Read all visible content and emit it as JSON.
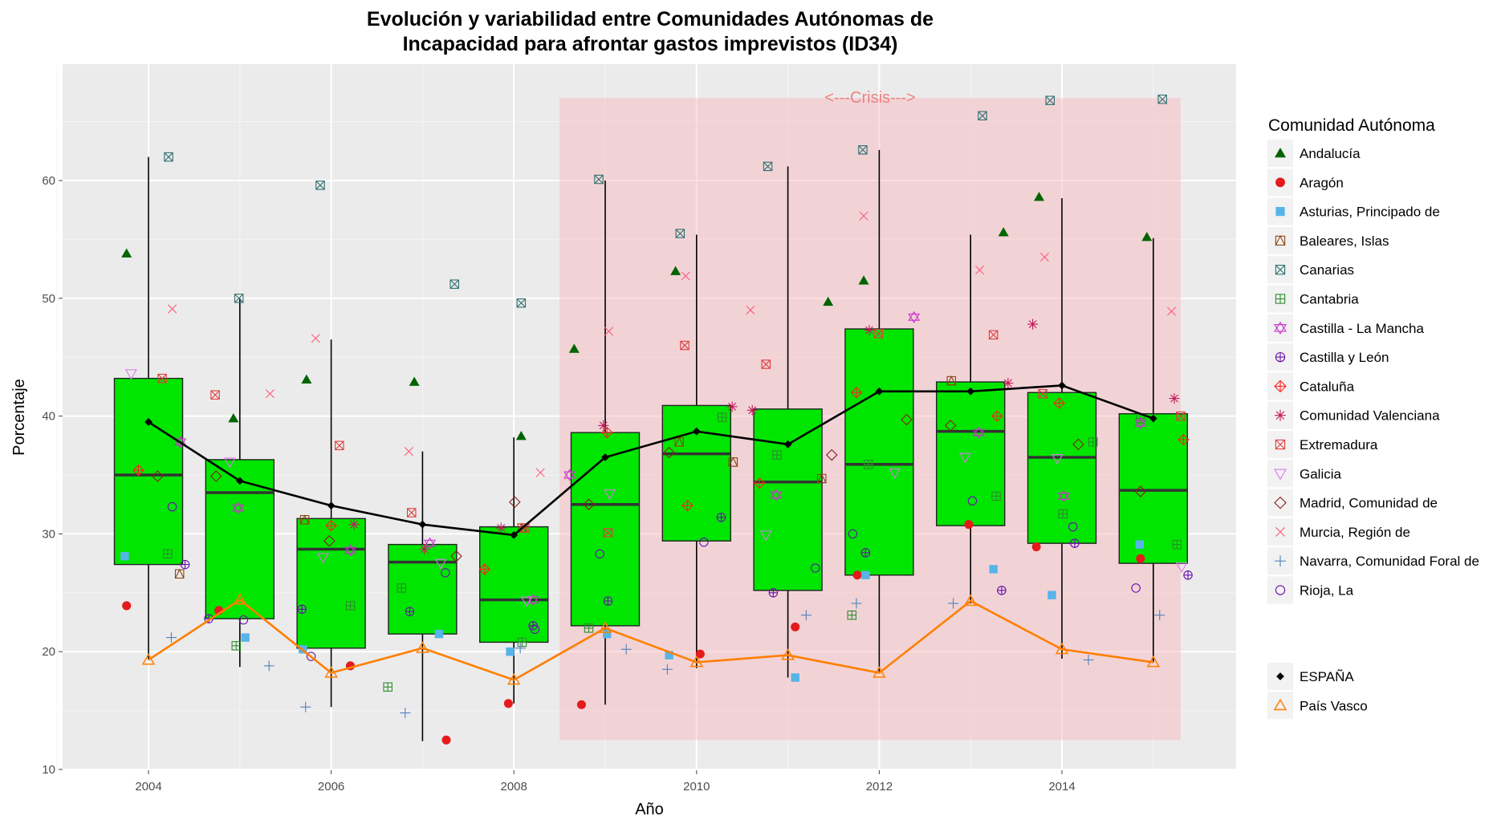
{
  "chart_data": {
    "type": "boxplot",
    "title": "Evolución y variabilidad entre Comunidades Autónomas de\nIncapacidad para afrontar gastos imprevistos (ID34)",
    "title_lines": [
      "Evolución y variabilidad entre Comunidades Autónomas de",
      "Incapacidad para afrontar gastos imprevistos (ID34)"
    ],
    "xlabel": "Año",
    "ylabel": "Porcentaje",
    "xlim": [
      2003.0,
      2016.0
    ],
    "ylim": [
      10,
      70
    ],
    "x_ticks": [
      2004,
      2006,
      2008,
      2010,
      2012,
      2014
    ],
    "y_ticks": [
      10,
      20,
      30,
      40,
      50,
      60
    ],
    "grid": true,
    "background_color": "#ebebeb",
    "box_fill": "#00e600",
    "crisis": {
      "label": "<---Crisis--->",
      "x_start": 2008.5,
      "x_end": 2015.3,
      "y_start": 12.5,
      "y_end": 67.0,
      "color": "#f8b6bc"
    },
    "legend": {
      "title": "Comunidad Autónoma",
      "position": "right",
      "items": [
        {
          "name": "Andalucía",
          "shape": "triangle-filled",
          "color": "#006400"
        },
        {
          "name": "Aragón",
          "shape": "circle-filled",
          "color": "#e41a1c"
        },
        {
          "name": "Asturias, Principado de",
          "shape": "square-filled",
          "color": "#56b4e9"
        },
        {
          "name": "Baleares, Islas",
          "shape": "square-triangle",
          "color": "#8b4513"
        },
        {
          "name": "Canarias",
          "shape": "square-x",
          "color": "#2f6f6f"
        },
        {
          "name": "Cantabria",
          "shape": "square-plus",
          "color": "#2e8b2e"
        },
        {
          "name": "Castilla - La Mancha",
          "shape": "star-of-david",
          "color": "#cc33cc"
        },
        {
          "name": "Castilla y León",
          "shape": "circle-plus",
          "color": "#6a0dad"
        },
        {
          "name": "Cataluña",
          "shape": "diamond-plus",
          "color": "#ff2020"
        },
        {
          "name": "Comunidad Valenciana",
          "shape": "asterisk",
          "color": "#c2185b"
        },
        {
          "name": "Extremadura",
          "shape": "square-x",
          "color": "#e03c3c"
        },
        {
          "name": "Galicia",
          "shape": "triangle-down",
          "color": "#dd77ee"
        },
        {
          "name": "Madrid, Comunidad de",
          "shape": "diamond",
          "color": "#8b1a1a"
        },
        {
          "name": "Murcia, Región de",
          "shape": "cross-x",
          "color": "#ff5a7a"
        },
        {
          "name": "Navarra, Comunidad Foral de",
          "shape": "plus",
          "color": "#4f81bd"
        },
        {
          "name": "Rioja, La",
          "shape": "circle",
          "color": "#6a0dad"
        }
      ],
      "lines": [
        {
          "name": "ESPAÑA",
          "shape": "diamond-filled",
          "color": "#000000"
        },
        {
          "name": "País Vasco",
          "shape": "triangle",
          "color": "#ff7f00"
        }
      ]
    },
    "boxes": [
      {
        "x": 2004,
        "q1": 27.4,
        "median": 35.0,
        "q3": 43.2,
        "whisker_low": 19.3,
        "whisker_high": 62.0
      },
      {
        "x": 2005,
        "q1": 22.8,
        "median": 33.5,
        "q3": 36.3,
        "whisker_low": 18.7,
        "whisker_high": 50.0
      },
      {
        "x": 2006,
        "q1": 20.3,
        "median": 28.7,
        "q3": 31.3,
        "whisker_low": 15.3,
        "whisker_high": 46.5
      },
      {
        "x": 2007,
        "q1": 21.5,
        "median": 27.6,
        "q3": 29.1,
        "whisker_low": 12.4,
        "whisker_high": 37.0
      },
      {
        "x": 2008,
        "q1": 20.8,
        "median": 24.4,
        "q3": 30.6,
        "whisker_low": 15.6,
        "whisker_high": 38.2
      },
      {
        "x": 2009,
        "q1": 22.2,
        "median": 32.5,
        "q3": 38.6,
        "whisker_low": 15.5,
        "whisker_high": 60.0
      },
      {
        "x": 2010,
        "q1": 29.4,
        "median": 36.8,
        "q3": 40.9,
        "whisker_low": 18.6,
        "whisker_high": 55.4
      },
      {
        "x": 2011,
        "q1": 25.2,
        "median": 34.4,
        "q3": 40.6,
        "whisker_low": 17.8,
        "whisker_high": 61.2
      },
      {
        "x": 2012,
        "q1": 26.5,
        "median": 35.9,
        "q3": 47.4,
        "whisker_low": 18.2,
        "whisker_high": 62.6
      },
      {
        "x": 2013,
        "q1": 30.7,
        "median": 38.7,
        "q3": 42.9,
        "whisker_low": 24.1,
        "whisker_high": 55.4
      },
      {
        "x": 2014,
        "q1": 29.2,
        "median": 36.5,
        "q3": 42.0,
        "whisker_low": 19.4,
        "whisker_high": 58.5
      },
      {
        "x": 2015,
        "q1": 27.5,
        "median": 33.7,
        "q3": 40.2,
        "whisker_low": 19.1,
        "whisker_high": 55.1
      }
    ],
    "series": [
      {
        "name": "ESPAÑA",
        "x": [
          2004,
          2005,
          2006,
          2007,
          2008,
          2009,
          2010,
          2011,
          2012,
          2013,
          2014,
          2015
        ],
        "values": [
          39.5,
          34.5,
          32.4,
          30.8,
          29.9,
          36.5,
          38.7,
          37.6,
          42.1,
          42.1,
          42.6,
          39.8
        ]
      },
      {
        "name": "País Vasco",
        "x": [
          2004,
          2005,
          2006,
          2007,
          2008,
          2009,
          2010,
          2011,
          2012,
          2013,
          2014,
          2015
        ],
        "values": [
          19.3,
          24.4,
          18.2,
          20.3,
          17.6,
          22.0,
          19.1,
          19.7,
          18.2,
          24.3,
          20.2,
          19.1
        ]
      }
    ],
    "points": {
      "Andalucía": [
        [
          2003.76,
          53.8
        ],
        [
          2004.93,
          39.8
        ],
        [
          2005.73,
          43.1
        ],
        [
          2006.91,
          42.9
        ],
        [
          2008.08,
          38.3
        ],
        [
          2008.66,
          45.7
        ],
        [
          2009.77,
          52.3
        ],
        [
          2011.44,
          49.7
        ],
        [
          2011.83,
          51.5
        ],
        [
          2013.36,
          55.6
        ],
        [
          2013.75,
          58.6
        ],
        [
          2014.93,
          55.2
        ]
      ],
      "Aragón": [
        [
          2003.76,
          23.9
        ],
        [
          2004.77,
          23.5
        ],
        [
          2006.21,
          18.8
        ],
        [
          2007.26,
          12.5
        ],
        [
          2007.94,
          15.6
        ],
        [
          2008.74,
          15.5
        ],
        [
          2010.04,
          19.8
        ],
        [
          2011.08,
          22.1
        ],
        [
          2011.76,
          26.5
        ],
        [
          2012.98,
          30.8
        ],
        [
          2013.72,
          28.9
        ],
        [
          2014.86,
          27.9
        ]
      ],
      "Asturias, Principado de": [
        [
          2003.74,
          28.1
        ],
        [
          2005.06,
          21.2
        ],
        [
          2005.69,
          20.2
        ],
        [
          2007.18,
          21.5
        ],
        [
          2007.96,
          20.0
        ],
        [
          2009.02,
          21.5
        ],
        [
          2009.7,
          19.7
        ],
        [
          2011.08,
          17.8
        ],
        [
          2011.85,
          26.5
        ],
        [
          2013.25,
          27.0
        ],
        [
          2013.89,
          24.8
        ],
        [
          2014.85,
          29.1
        ]
      ],
      "Baleares, Islas": [
        [
          2004.34,
          26.6
        ],
        [
          2005.71,
          31.2
        ],
        [
          2008.09,
          30.5
        ],
        [
          2009.81,
          37.8
        ],
        [
          2010.4,
          36.1
        ],
        [
          2011.37,
          34.7
        ],
        [
          2012.79,
          43.0
        ]
      ],
      "Canarias": [
        [
          2004.22,
          62.0
        ],
        [
          2004.99,
          50.0
        ],
        [
          2005.88,
          59.6
        ],
        [
          2007.35,
          51.2
        ],
        [
          2008.08,
          49.6
        ],
        [
          2008.93,
          60.1
        ],
        [
          2009.82,
          55.5
        ],
        [
          2010.78,
          61.2
        ],
        [
          2011.82,
          62.6
        ],
        [
          2013.13,
          65.5
        ],
        [
          2013.87,
          66.8
        ],
        [
          2015.1,
          66.9
        ]
      ],
      "Cantabria": [
        [
          2004.21,
          28.3
        ],
        [
          2004.96,
          20.5
        ],
        [
          2006.21,
          23.9
        ],
        [
          2006.62,
          17.0
        ],
        [
          2006.77,
          25.4
        ],
        [
          2008.09,
          20.8
        ],
        [
          2008.82,
          22.0
        ],
        [
          2010.28,
          39.9
        ],
        [
          2010.88,
          36.7
        ],
        [
          2011.7,
          23.1
        ],
        [
          2011.88,
          35.9
        ],
        [
          2013.28,
          33.2
        ],
        [
          2014.01,
          31.7
        ],
        [
          2014.34,
          37.8
        ],
        [
          2014.86,
          39.8
        ],
        [
          2015.26,
          29.1
        ]
      ],
      "Castilla - La Mancha": [
        [
          2004.35,
          37.8
        ],
        [
          2004.98,
          32.2
        ],
        [
          2006.21,
          28.6
        ],
        [
          2007.08,
          29.2
        ],
        [
          2008.21,
          24.4
        ],
        [
          2008.61,
          35.0
        ],
        [
          2010.87,
          33.3
        ],
        [
          2012.38,
          48.4
        ],
        [
          2013.09,
          38.6
        ],
        [
          2014.02,
          33.2
        ],
        [
          2014.86,
          39.4
        ]
      ],
      "Castilla y León": [
        [
          2004.4,
          27.4
        ],
        [
          2004.66,
          22.8
        ],
        [
          2005.68,
          23.6
        ],
        [
          2006.86,
          23.4
        ],
        [
          2008.21,
          22.2
        ],
        [
          2009.03,
          24.3
        ],
        [
          2010.27,
          31.4
        ],
        [
          2010.84,
          25.0
        ],
        [
          2011.85,
          28.4
        ],
        [
          2013.34,
          25.2
        ],
        [
          2014.14,
          29.2
        ],
        [
          2015.38,
          26.5
        ]
      ],
      "Cataluña": [
        [
          2003.89,
          35.4
        ],
        [
          2006.0,
          30.7
        ],
        [
          2007.68,
          27.0
        ],
        [
          2009.02,
          38.6
        ],
        [
          2009.9,
          32.4
        ],
        [
          2010.69,
          34.3
        ],
        [
          2011.75,
          42.0
        ],
        [
          2013.29,
          40.0
        ],
        [
          2013.97,
          41.1
        ],
        [
          2015.33,
          38.0
        ]
      ],
      "Comunidad Valenciana": [
        [
          2006.25,
          30.8
        ],
        [
          2007.02,
          28.7
        ],
        [
          2007.86,
          30.5
        ],
        [
          2008.98,
          39.2
        ],
        [
          2010.39,
          40.8
        ],
        [
          2010.61,
          40.5
        ],
        [
          2011.89,
          47.3
        ],
        [
          2013.41,
          42.8
        ],
        [
          2013.68,
          47.8
        ],
        [
          2015.23,
          41.5
        ]
      ],
      "Extremadura": [
        [
          2004.15,
          43.2
        ],
        [
          2004.73,
          41.8
        ],
        [
          2006.09,
          37.5
        ],
        [
          2006.88,
          31.8
        ],
        [
          2008.12,
          30.5
        ],
        [
          2009.03,
          30.1
        ],
        [
          2009.87,
          46.0
        ],
        [
          2010.76,
          44.4
        ],
        [
          2011.99,
          47.0
        ],
        [
          2013.25,
          46.9
        ],
        [
          2013.79,
          41.9
        ],
        [
          2015.3,
          40.0
        ]
      ],
      "Galicia": [
        [
          2003.81,
          43.6
        ],
        [
          2004.89,
          36.1
        ],
        [
          2005.91,
          28.0
        ],
        [
          2007.2,
          27.5
        ],
        [
          2008.14,
          24.3
        ],
        [
          2009.05,
          33.4
        ],
        [
          2010.76,
          29.9
        ],
        [
          2012.17,
          35.2
        ],
        [
          2012.94,
          36.5
        ],
        [
          2013.95,
          36.4
        ],
        [
          2015.31,
          27.2
        ]
      ],
      "Madrid, Comunidad de": [
        [
          2004.1,
          34.9
        ],
        [
          2004.74,
          34.9
        ],
        [
          2005.98,
          29.4
        ],
        [
          2007.37,
          28.1
        ],
        [
          2008.01,
          32.7
        ],
        [
          2008.82,
          32.5
        ],
        [
          2009.7,
          36.9
        ],
        [
          2011.48,
          36.7
        ],
        [
          2012.3,
          39.7
        ],
        [
          2012.78,
          39.2
        ],
        [
          2014.18,
          37.6
        ],
        [
          2014.86,
          33.6
        ]
      ],
      "Murcia, Región de": [
        [
          2004.26,
          49.1
        ],
        [
          2005.33,
          41.9
        ],
        [
          2005.83,
          46.6
        ],
        [
          2006.85,
          37.0
        ],
        [
          2008.29,
          35.2
        ],
        [
          2009.04,
          47.2
        ],
        [
          2009.88,
          51.9
        ],
        [
          2010.59,
          49.0
        ],
        [
          2011.83,
          57.0
        ],
        [
          2013.1,
          52.4
        ],
        [
          2013.81,
          53.5
        ],
        [
          2015.2,
          48.9
        ]
      ],
      "Navarra, Comunidad Foral de": [
        [
          2004.25,
          21.2
        ],
        [
          2005.32,
          18.8
        ],
        [
          2005.72,
          15.3
        ],
        [
          2006.81,
          14.8
        ],
        [
          2008.07,
          20.3
        ],
        [
          2009.23,
          20.2
        ],
        [
          2009.68,
          18.5
        ],
        [
          2011.2,
          23.1
        ],
        [
          2011.75,
          24.1
        ],
        [
          2012.81,
          24.1
        ],
        [
          2014.29,
          19.3
        ],
        [
          2015.07,
          23.1
        ]
      ],
      "Rioja, La": [
        [
          2004.26,
          32.3
        ],
        [
          2005.04,
          22.7
        ],
        [
          2005.78,
          19.6
        ],
        [
          2007.25,
          26.7
        ],
        [
          2008.23,
          21.9
        ],
        [
          2008.94,
          28.3
        ],
        [
          2010.08,
          29.3
        ],
        [
          2011.3,
          27.1
        ],
        [
          2011.71,
          30.0
        ],
        [
          2013.02,
          32.8
        ],
        [
          2014.12,
          30.6
        ],
        [
          2014.81,
          25.4
        ]
      ]
    }
  }
}
